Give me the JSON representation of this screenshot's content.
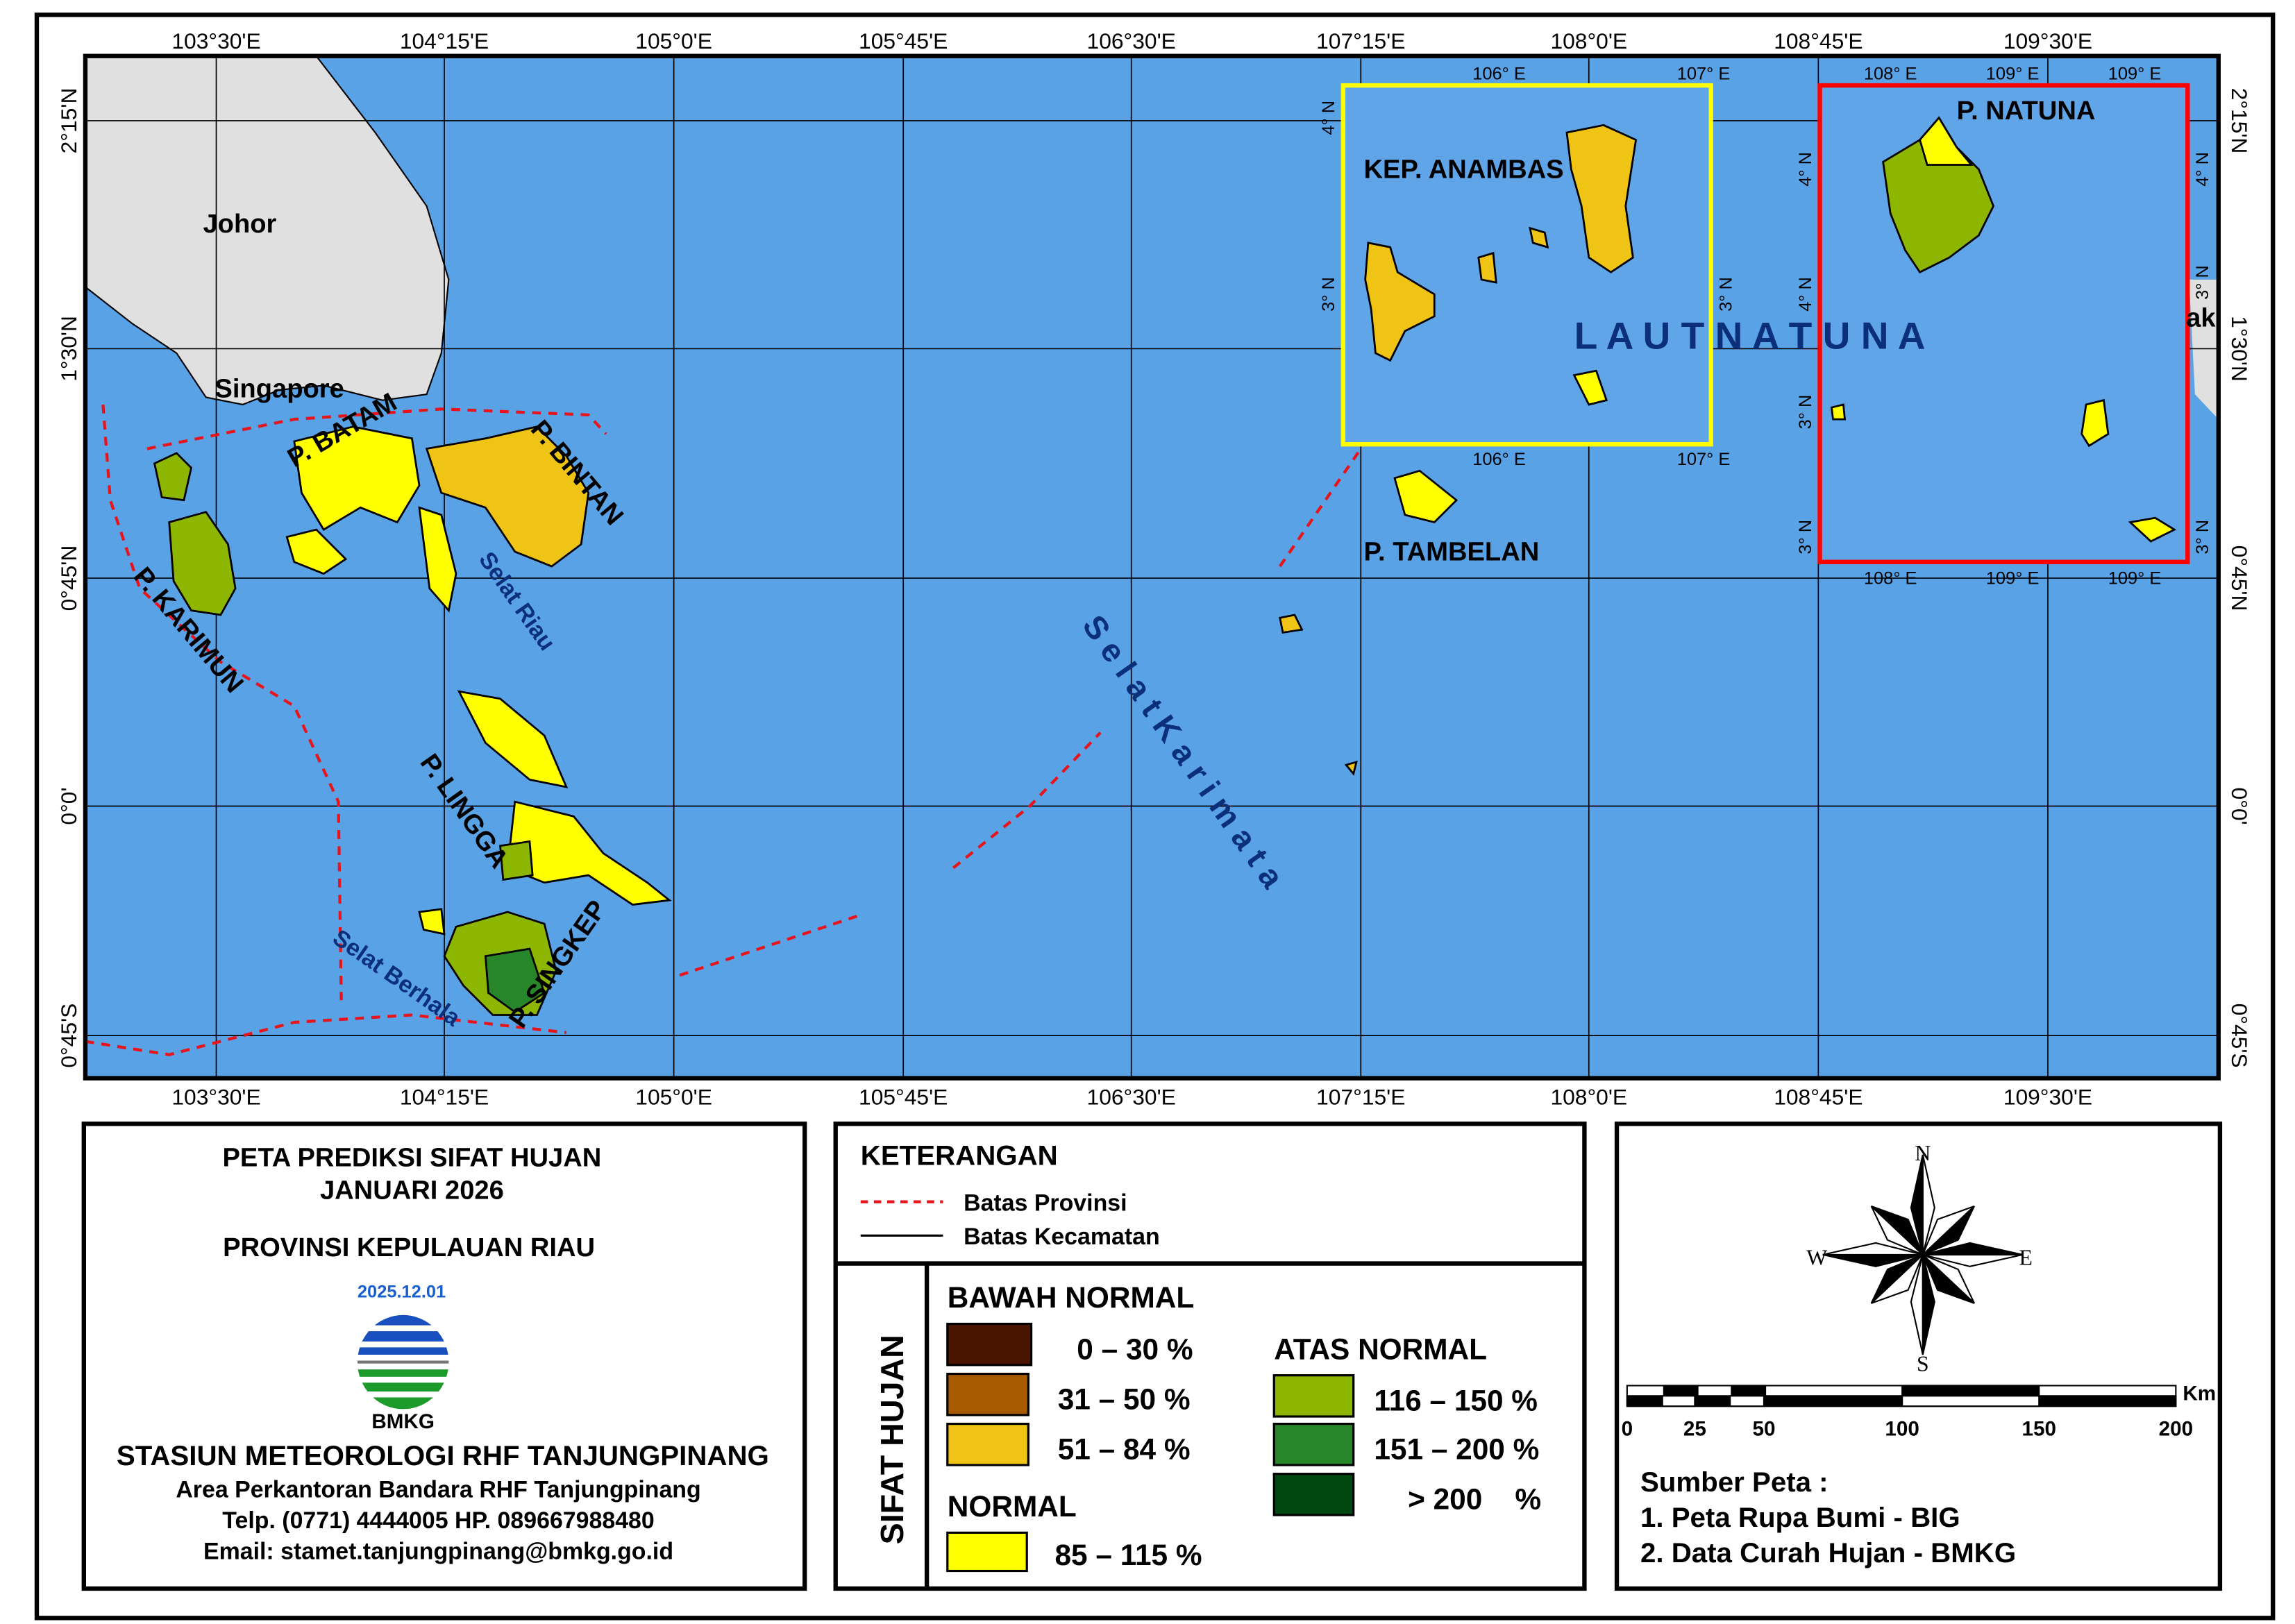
{
  "map": {
    "colors": {
      "sea": "#5aa2e6",
      "land_other": "#e0e0e0",
      "province_border": "#e8141c",
      "inset_anambas": "#ffff00",
      "inset_natuna": "#ff0000"
    },
    "longitude_labels": [
      "103°30'E",
      "104°15'E",
      "105°0'E",
      "105°45'E",
      "106°30'E",
      "107°15'E",
      "108°0'E",
      "108°45'E",
      "109°30'E"
    ],
    "latitude_labels": [
      "2°15'N",
      "1°30'N",
      "0°45'N",
      "0°0'",
      "0°45'S"
    ],
    "place_labels": {
      "johor": "Johor",
      "singapore": "Singapore",
      "batam": "P. BATAM",
      "bintan": "P. BINTAN",
      "karimun": "P. KARIMUN",
      "lingga": "P. LINGGA",
      "singkep": "P. SINGKEP",
      "tambelan": "P. TAMBELAN",
      "anambas": "KEP. ANAMBAS",
      "natuna": "P. NATUNA",
      "kalimantan_partial": "ak"
    },
    "sea_labels": {
      "selat_riau": "Selat Riau",
      "selat_berhala": "Selat Berhala",
      "selat_karimata": "S e l a t   K a r i m a t a",
      "laut_natuna": "L A U T    N A T U N A"
    },
    "inset_anambas": {
      "top_labels": [
        "106° E",
        "107° E"
      ],
      "bottom_labels": [
        "106° E",
        "107° E"
      ],
      "left_labels": [
        "4° N",
        "3° N"
      ],
      "right_labels": [
        "3° N"
      ]
    },
    "inset_natuna": {
      "top_labels": [
        "108° E",
        "109° E",
        "109° E"
      ],
      "bottom_labels": [
        "108° E",
        "109° E",
        "109° E"
      ],
      "left_labels": [
        "4° N",
        "4° N",
        "3° N",
        "3° N"
      ],
      "right_labels": [
        "4° N",
        "3° N",
        "3° N"
      ]
    }
  },
  "title_block": {
    "title_line1": "PETA PREDIKSI SIFAT HUJAN",
    "title_line2": "JANUARI 2026",
    "province": "PROVINSI KEPULAUAN RIAU",
    "version": "2025.12.01",
    "logo_text": "BMKG",
    "station": "STASIUN METEOROLOGI RHF TANJUNGPINANG",
    "address": "Area Perkantoran Bandara RHF Tanjungpinang",
    "phone": "Telp. (0771) 4444005  HP. 089667988480",
    "email": "Email: stamet.tanjungpinang@bmkg.go.id"
  },
  "legend": {
    "title": "KETERANGAN",
    "lines": [
      {
        "label": "Batas Provinsi",
        "style": "dashed",
        "color": "#e8141c"
      },
      {
        "label": "Batas Kecamatan",
        "style": "solid",
        "color": "#000000"
      }
    ],
    "side_title": "SIFAT HUJAN",
    "groups": {
      "bawah_normal": {
        "title": "BAWAH NORMAL",
        "items": [
          {
            "label": "0 – 30 %",
            "color": "#4a1500"
          },
          {
            "label": "31 – 50 %",
            "color": "#a85a00"
          },
          {
            "label": "51 – 84 %",
            "color": "#f0c414"
          }
        ]
      },
      "normal": {
        "title": "NORMAL",
        "items": [
          {
            "label": "85 – 115 %",
            "color": "#ffff00"
          }
        ]
      },
      "atas_normal": {
        "title": "ATAS NORMAL",
        "items": [
          {
            "label": "116 – 150 %",
            "color": "#8db600"
          },
          {
            "label": "151 – 200 %",
            "color": "#27862a"
          },
          {
            "label": "> 200    %",
            "color": "#004712"
          }
        ]
      }
    }
  },
  "compass": {
    "n": "N",
    "e": "E",
    "s": "S",
    "w": "W"
  },
  "scale_bar": {
    "unit": "Km",
    "ticks": [
      "0",
      "25",
      "50",
      "100",
      "150",
      "200"
    ]
  },
  "sources": {
    "title": "Sumber Peta :",
    "items": [
      "1. Peta Rupa Bumi - BIG",
      "2. Data Curah Hujan - BMKG"
    ]
  }
}
